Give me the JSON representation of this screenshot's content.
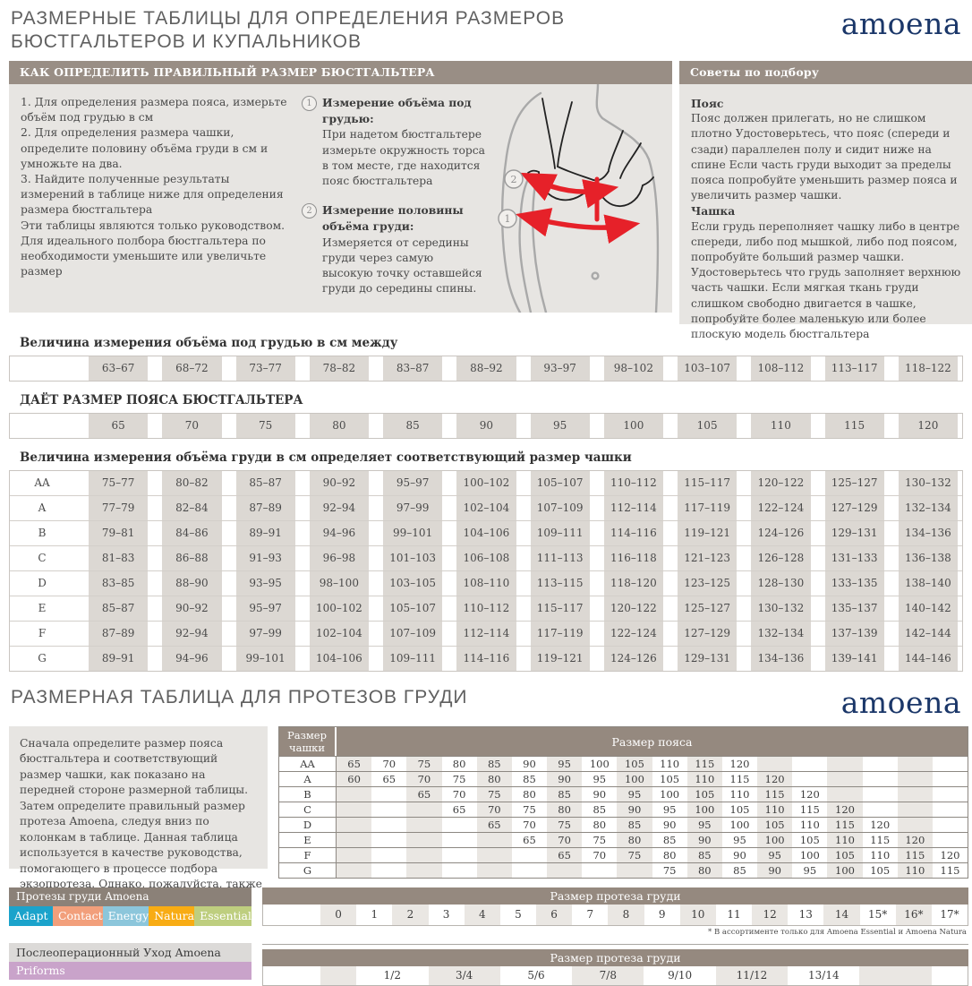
{
  "page": {
    "title_line1": "РАЗМЕРНЫЕ ТАБЛИЦЫ ДЛЯ ОПРЕДЕЛЕНИЯ РАЗМЕРОВ",
    "title_line2": "БЮСТГАЛЬТЕРОВ И КУПАЛЬНИКОВ",
    "logo": "amoena",
    "section2_title": "РАЗМЕРНАЯ ТАБЛИЦА ДЛЯ ПРОТЕЗОВ ГРУДИ",
    "colors": {
      "header_bar": "#998e85",
      "panel_bg": "#e7e5e2",
      "cell_shade": "#dcd8d3",
      "stair_shade": "#eae7e3",
      "logo_navy": "#1b3769",
      "arrow_red": "#e62129"
    }
  },
  "how_to": {
    "header": "КАК ОПРЕДЕЛИТЬ ПРАВИЛЬНЫЙ РАЗМЕР БЮСТГАЛЬТЕРА",
    "steps": [
      "1. Для определения размера пояса, измерьте объём под грудью в см",
      "2.  Для определения размера чашки, определите половину объёма груди в см и умножьте на два.",
      "3.  Найдите полученные результаты измерений в таблице ниже для определения размера бюстгальтера"
    ],
    "note": "Эти таблицы являются только руководством. Для идеального полбора бюстгальтера по необходимости уменьшите или увеличьте размер",
    "measures": [
      {
        "num": "1",
        "title": "Измерение объёма под грудью:",
        "text": "При надетом бюстгальтере измерьте окружность торса в том месте, где находится пояс бюстгальтера"
      },
      {
        "num": "2",
        "title": "Измерение половины объёма груди:",
        "text": "Измеряется от середины груди через самую высокую точку оставшейся груди до середины спины."
      }
    ]
  },
  "tips": {
    "header": "Советы по подбору",
    "belt_title": "Пояс",
    "belt_text": "Пояс должен прилегать, но не слишком плотно Удостоверьтесь, что пояс (спереди и сзади) параллелен полу и сидит ниже на спине Если часть груди выходит за пределы пояса попробуйте уменьшить размер пояса и увеличить размер чашки.",
    "cup_title": "Чашка",
    "cup_text": "Если грудь переполняет чашку либо в центре спереди, либо под мышкой, либо под поясом, попробуйте больший размер чашки. Удостоверьтесь что грудь заполняет верхнюю часть чашки. Если мягкая ткань груди слишком свободно двигается в чашке, попробуйте более маленькую или более плоскую модель бюстгальтера"
  },
  "underbust_table": {
    "label": "Величина измерения объёма под грудью в см между",
    "values": [
      "63–67",
      "68–72",
      "73–77",
      "78–82",
      "83–87",
      "88–92",
      "93–97",
      "98–102",
      "103–107",
      "108–112",
      "113–117",
      "118–122"
    ]
  },
  "band_table": {
    "label": "ДАЁТ РАЗМЕР ПОЯСА БЮСТГАЛЬТЕРА",
    "values": [
      "65",
      "70",
      "75",
      "80",
      "85",
      "90",
      "95",
      "100",
      "105",
      "110",
      "115",
      "120"
    ]
  },
  "cup_table": {
    "label": "Величина измерения объёма груди в см определяет соответствующий размер чашки",
    "rows": [
      {
        "cup": "AA",
        "values": [
          "75–77",
          "80–82",
          "85–87",
          "90–92",
          "95–97",
          "100–102",
          "105–107",
          "110–112",
          "115–117",
          "120–122",
          "125–127",
          "130–132"
        ]
      },
      {
        "cup": "A",
        "values": [
          "77–79",
          "82–84",
          "87–89",
          "92–94",
          "97–99",
          "102–104",
          "107–109",
          "112–114",
          "117–119",
          "122–124",
          "127–129",
          "132–134"
        ]
      },
      {
        "cup": "B",
        "values": [
          "79–81",
          "84–86",
          "89–91",
          "94–96",
          "99–101",
          "104–106",
          "109–111",
          "114–116",
          "119–121",
          "124–126",
          "129–131",
          "134–136"
        ]
      },
      {
        "cup": "C",
        "values": [
          "81–83",
          "86–88",
          "91–93",
          "96–98",
          "101–103",
          "106–108",
          "111–113",
          "116–118",
          "121–123",
          "126–128",
          "131–133",
          "136–138"
        ]
      },
      {
        "cup": "D",
        "values": [
          "83–85",
          "88–90",
          "93–95",
          "98–100",
          "103–105",
          "108–110",
          "113–115",
          "118–120",
          "123–125",
          "128–130",
          "133–135",
          "138–140"
        ]
      },
      {
        "cup": "E",
        "values": [
          "85–87",
          "90–92",
          "95–97",
          "100–102",
          "105–107",
          "110–112",
          "115–117",
          "120–122",
          "125–127",
          "130–132",
          "135–137",
          "140–142"
        ]
      },
      {
        "cup": "F",
        "values": [
          "87–89",
          "92–94",
          "97–99",
          "102–104",
          "107–109",
          "112–114",
          "117–119",
          "122–124",
          "127–129",
          "132–134",
          "137–139",
          "142–144"
        ]
      },
      {
        "cup": "G",
        "values": [
          "89–91",
          "94–96",
          "99–101",
          "104–106",
          "109–111",
          "114–116",
          "119–121",
          "124–126",
          "129–131",
          "134–136",
          "139–141",
          "144–146"
        ]
      }
    ]
  },
  "prosthesis": {
    "intro": "Сначала определите размер пояса бюстгальтера и соответствующий размер чашки, как показано на передней стороне размерной таблицы. Затем определите правильный размер протеза Amoena, следуя вниз по колонкам в таблице. Данная таблица используется в качестве руководства, помогающего в процессе подбора экзопротеза. Однако, пожалуйста, также полагайтесь на свой опыт и индивидуальные ощущения.",
    "staircase": {
      "cup_header": "Размер чашки",
      "band_header": "Размер пояса",
      "rows": [
        {
          "cup": "AA",
          "cells": [
            "65",
            "70",
            "75",
            "80",
            "85",
            "90",
            "95",
            "100",
            "105",
            "110",
            "115",
            "120",
            "",
            "",
            "",
            "",
            "",
            ""
          ]
        },
        {
          "cup": "A",
          "cells": [
            "60",
            "65",
            "70",
            "75",
            "80",
            "85",
            "90",
            "95",
            "100",
            "105",
            "110",
            "115",
            "120",
            "",
            "",
            "",
            "",
            ""
          ]
        },
        {
          "cup": "B",
          "cells": [
            "",
            "",
            "65",
            "70",
            "75",
            "80",
            "85",
            "90",
            "95",
            "100",
            "105",
            "110",
            "115",
            "120",
            "",
            "",
            "",
            ""
          ]
        },
        {
          "cup": "C",
          "cells": [
            "",
            "",
            "",
            "65",
            "70",
            "75",
            "80",
            "85",
            "90",
            "95",
            "100",
            "105",
            "110",
            "115",
            "120",
            "",
            "",
            ""
          ]
        },
        {
          "cup": "D",
          "cells": [
            "",
            "",
            "",
            "",
            "65",
            "70",
            "75",
            "80",
            "85",
            "90",
            "95",
            "100",
            "105",
            "110",
            "115",
            "120",
            "",
            ""
          ]
        },
        {
          "cup": "E",
          "cells": [
            "",
            "",
            "",
            "",
            "",
            "65",
            "70",
            "75",
            "80",
            "85",
            "90",
            "95",
            "100",
            "105",
            "110",
            "115",
            "120",
            ""
          ]
        },
        {
          "cup": "F",
          "cells": [
            "",
            "",
            "",
            "",
            "",
            "",
            "65",
            "70",
            "75",
            "80",
            "85",
            "90",
            "95",
            "100",
            "105",
            "110",
            "115",
            "120"
          ]
        },
        {
          "cup": "G",
          "cells": [
            "",
            "",
            "",
            "",
            "",
            "",
            "",
            "",
            "",
            "75",
            "80",
            "85",
            "90",
            "95",
            "100",
            "105",
            "110",
            "115"
          ]
        }
      ]
    },
    "products": {
      "header": "Протезы груди Amoena",
      "badges": [
        {
          "label": "Adapt",
          "color": "#1ba3cb"
        },
        {
          "label": "Contact",
          "color": "#f29f7b"
        },
        {
          "label": "Energy",
          "color": "#8cc6db"
        },
        {
          "label": "Natura",
          "color": "#f8ac14"
        },
        {
          "label": "Essential",
          "color": "#bece7f"
        }
      ]
    },
    "size_row": {
      "header": "Размер протеза груди",
      "values": [
        "0",
        "1",
        "2",
        "3",
        "4",
        "5",
        "6",
        "7",
        "8",
        "9",
        "10",
        "11",
        "12",
        "13",
        "14",
        "15*",
        "16*",
        "17*"
      ],
      "footnote": "* В ассортименте только для  Amoena Essential и Amoena Natura"
    },
    "postop": {
      "header": "Послеоперационный Уход Amoena",
      "badge": "Priforms",
      "badge_color": "#c9a3ca"
    },
    "pair_row": {
      "header": "Размер протеза груди",
      "values": [
        "1/2",
        "3/4",
        "5/6",
        "7/8",
        "9/10",
        "11/12",
        "13/14"
      ]
    }
  }
}
